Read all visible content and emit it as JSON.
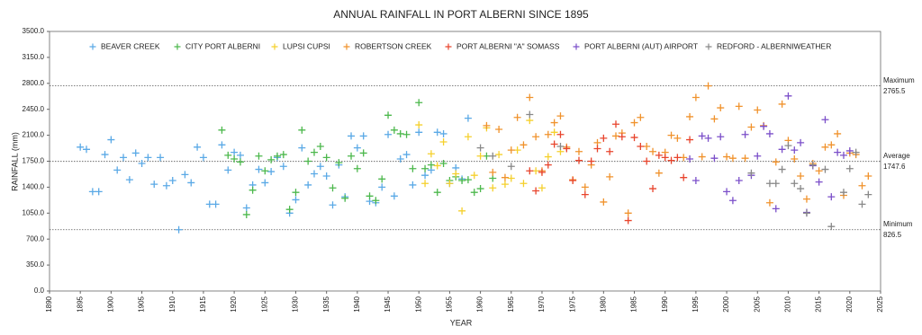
{
  "chart_data": {
    "type": "scatter",
    "title": "ANNUAL RAINFALL IN PORT ALBERNI SINCE 1895",
    "x_label": "YEAR",
    "y_label": "RAINFALL (mm)",
    "xlim": [
      1890,
      2025
    ],
    "xticks": [
      1890,
      1895,
      1900,
      1905,
      1910,
      1915,
      1920,
      1925,
      1930,
      1935,
      1940,
      1945,
      1950,
      1955,
      1960,
      1965,
      1970,
      1975,
      1980,
      1985,
      1990,
      1995,
      2000,
      2005,
      2010,
      2015,
      2020,
      2025
    ],
    "ylim": [
      0,
      3500
    ],
    "yticks": [
      {
        "value": 0,
        "label": "0.0"
      },
      {
        "value": 350,
        "label": "350.0"
      },
      {
        "value": 700,
        "label": "700.0"
      },
      {
        "value": 1050,
        "label": "1050.0"
      },
      {
        "value": 1400,
        "label": "1400.0"
      },
      {
        "value": 1750,
        "label": "1750.0"
      },
      {
        "value": 2100,
        "label": "2100.0"
      },
      {
        "value": 2450,
        "label": "2450.0"
      },
      {
        "value": 2800,
        "label": "2800.0"
      },
      {
        "value": 3150,
        "label": "3150.0"
      },
      {
        "value": 3500,
        "label": "3500.0"
      }
    ],
    "reference_lines": [
      {
        "label": "Maximum",
        "value": 2765.5
      },
      {
        "label": "Average",
        "value": 1747.6
      },
      {
        "label": "Minimum",
        "value": 826.5
      }
    ],
    "legend": "top",
    "series": [
      {
        "name": "BEAVER CREEK",
        "color": "#5aa9e6",
        "x": [
          1895,
          1896,
          1897,
          1898,
          1899,
          1900,
          1901,
          1902,
          1903,
          1904,
          1905,
          1906,
          1907,
          1908,
          1909,
          1910,
          1911,
          1912,
          1913,
          1914,
          1915,
          1916,
          1917,
          1918,
          1919,
          1920,
          1921,
          1922,
          1923,
          1924,
          1925,
          1926,
          1927,
          1928,
          1929,
          1930,
          1931,
          1932,
          1933,
          1934,
          1935,
          1936,
          1937,
          1938,
          1939,
          1940,
          1941,
          1942,
          1943,
          1944,
          1945,
          1946,
          1947,
          1948,
          1949,
          1950,
          1951,
          1952,
          1953,
          1954,
          1955,
          1956,
          1957,
          1958
        ],
        "values": [
          1940,
          1910,
          1340,
          1340,
          1840,
          2040,
          1630,
          1800,
          1500,
          1860,
          1720,
          1800,
          1440,
          1800,
          1420,
          1490,
          826.5,
          1570,
          1460,
          1940,
          1800,
          1170,
          1170,
          1970,
          1630,
          1870,
          1830,
          1120,
          1430,
          1640,
          1460,
          1610,
          1800,
          1680,
          1050,
          1230,
          1930,
          1430,
          1580,
          1680,
          1550,
          1160,
          1700,
          1270,
          2090,
          1930,
          2090,
          1210,
          1190,
          1400,
          2110,
          1280,
          1780,
          1840,
          1430,
          2140,
          1560,
          1630,
          2140,
          2120,
          1450,
          1660,
          1510,
          2330
        ]
      },
      {
        "name": "CITY PORT ALBERNI",
        "color": "#4cb84c",
        "x": [
          1918,
          1919,
          1920,
          1921,
          1922,
          1923,
          1924,
          1925,
          1926,
          1927,
          1928,
          1929,
          1930,
          1931,
          1932,
          1933,
          1934,
          1935,
          1936,
          1937,
          1938,
          1939,
          1940,
          1941,
          1942,
          1943,
          1944,
          1945,
          1946,
          1947,
          1948,
          1949,
          1950,
          1951,
          1952,
          1953,
          1954,
          1955,
          1956,
          1957,
          1958,
          1959,
          1960,
          1961,
          1962
        ],
        "values": [
          2170,
          1830,
          1780,
          1740,
          1030,
          1360,
          1820,
          1620,
          1770,
          1820,
          1840,
          1100,
          1330,
          2170,
          1750,
          1870,
          1950,
          1800,
          1390,
          1730,
          1250,
          1820,
          1650,
          1860,
          1280,
          1220,
          1510,
          2370,
          2170,
          2120,
          2110,
          1650,
          2540,
          1650,
          1700,
          1330,
          1720,
          1490,
          1540,
          1490,
          1500,
          1330,
          1380,
          1820,
          1520
        ]
      },
      {
        "name": "LUPSI CUPSI",
        "color": "#f5d02c",
        "x": [
          1950,
          1951,
          1952,
          1953,
          1954,
          1955,
          1956,
          1957,
          1958,
          1959,
          1960,
          1961,
          1962,
          1963,
          1964,
          1965,
          1966,
          1967,
          1968,
          1969,
          1970,
          1971,
          1972,
          1973
        ],
        "values": [
          2240,
          1450,
          1850,
          1690,
          2010,
          1450,
          1580,
          1080,
          2080,
          1560,
          1820,
          2200,
          1390,
          1840,
          1440,
          1520,
          1900,
          1450,
          2300,
          1620,
          1390,
          1810,
          2140,
          1880
        ]
      },
      {
        "name": "ROBERTSON CREEK",
        "color": "#f0922c",
        "x": [
          1961,
          1962,
          1963,
          1964,
          1965,
          1966,
          1967,
          1968,
          1969,
          1970,
          1971,
          1972,
          1973,
          1974,
          1975,
          1976,
          1977,
          1978,
          1979,
          1980,
          1981,
          1982,
          1983,
          1984,
          1985,
          1986,
          1987,
          1988,
          1989,
          1990,
          1991,
          1992,
          1993,
          1994,
          1995,
          1996,
          1997,
          1998,
          1999,
          2000,
          2001,
          2002,
          2003,
          2004,
          2005,
          2006,
          2007,
          2008,
          2009,
          2010,
          2011,
          2012,
          2013,
          2014,
          2015,
          2016,
          2017,
          2018,
          2019,
          2020,
          2021,
          2022,
          2023
        ],
        "values": [
          2230,
          1600,
          2180,
          1530,
          1900,
          2340,
          1970,
          2610,
          2080,
          1620,
          2110,
          2270,
          2360,
          1940,
          1500,
          1880,
          1400,
          1700,
          2000,
          1200,
          1540,
          2090,
          2130,
          1050,
          2270,
          2340,
          1950,
          1880,
          1590,
          1870,
          2100,
          2060,
          1800,
          2350,
          2610,
          1810,
          2765.5,
          2320,
          2470,
          1810,
          1790,
          2490,
          1790,
          2210,
          2440,
          2230,
          1190,
          1740,
          2520,
          2030,
          1780,
          1550,
          1240,
          1720,
          1620,
          1940,
          1970,
          2120,
          1290,
          1860,
          1840,
          1420,
          1550
        ]
      },
      {
        "name": "PORT ALBERNI \"A\" SOMASS",
        "color": "#e8442c",
        "x": [
          1968,
          1969,
          1970,
          1971,
          1972,
          1973,
          1974,
          1975,
          1976,
          1977,
          1978,
          1979,
          1980,
          1981,
          1982,
          1983,
          1984,
          1985,
          1986,
          1987,
          1988,
          1989,
          1990,
          1991,
          1992,
          1993,
          1994
        ],
        "values": [
          1620,
          1350,
          1600,
          1700,
          1980,
          2110,
          1920,
          1490,
          1760,
          1300,
          1750,
          1920,
          2060,
          1880,
          2250,
          2080,
          950,
          2070,
          1950,
          1750,
          1380,
          1830,
          1800,
          1760,
          1800,
          1530,
          2040
        ]
      },
      {
        "name": "PORT ALBERNI (AUT) AIRPORT",
        "color": "#7b4fc9",
        "x": [
          1994,
          1995,
          1996,
          1997,
          1998,
          1999,
          2000,
          2001,
          2002,
          2003,
          2004,
          2005,
          2006,
          2007,
          2008,
          2009,
          2010,
          2011,
          2012,
          2013,
          2014,
          2015,
          2016,
          2017,
          2018,
          2019,
          2020
        ],
        "values": [
          1780,
          1490,
          2090,
          2060,
          1790,
          2080,
          1340,
          1220,
          1490,
          2110,
          1560,
          1820,
          2220,
          2120,
          1110,
          1910,
          2630,
          1900,
          2000,
          1060,
          1690,
          1470,
          2310,
          1270,
          1870,
          1830,
          1890
        ]
      },
      {
        "name": "REDFORD - ALBERNIWEATHER",
        "color": "#888888",
        "x": [
          1960,
          1962,
          1965,
          1968,
          1973,
          2004,
          2007,
          2008,
          2009,
          2010,
          2011,
          2012,
          2013,
          2014,
          2016,
          2017,
          2019,
          2020,
          2021,
          2022,
          2023
        ],
        "values": [
          1930,
          1820,
          1680,
          2380,
          1950,
          1590,
          1450,
          1450,
          1640,
          1960,
          1450,
          1380,
          1050,
          1700,
          1640,
          870,
          1330,
          1650,
          1870,
          1170,
          1300
        ]
      }
    ]
  }
}
